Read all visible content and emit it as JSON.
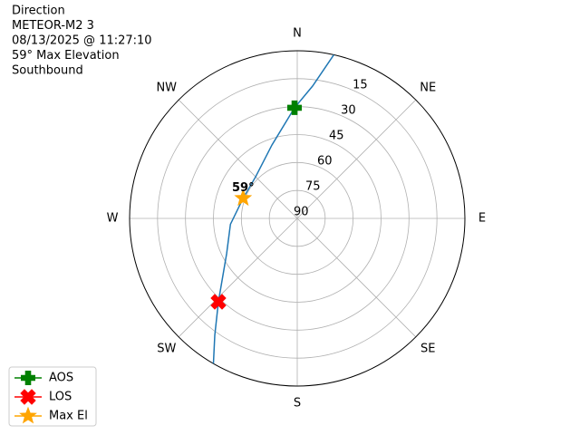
{
  "chart_data": {
    "type": "polar",
    "title_lines": [
      "Direction",
      "METEOR-M2 3",
      "08/13/2025 @ 11:27:10",
      "59° Max Elevation",
      "Southbound"
    ],
    "directions": [
      "N",
      "NE",
      "E",
      "SE",
      "S",
      "SW",
      "W",
      "NW"
    ],
    "rlim": [
      90,
      0
    ],
    "rticks": [
      90,
      75,
      60,
      45,
      30,
      15
    ],
    "grid": true,
    "legend": "lower left",
    "track": {
      "color": "#1f77b4",
      "azimuth": [
        12.6,
        6.6,
        358.6,
        341,
        315,
        290.5,
        265,
        243.4,
        223.4,
        215.2,
        210
      ],
      "elevation": [
        0,
        18.5,
        30.6,
        48.3,
        58.4,
        59,
        54,
        47.6,
        28.4,
        13.2,
        0
      ]
    },
    "series": [
      {
        "name": "AOS",
        "color": "#008000",
        "marker": "plus",
        "azimuth": [
          358.6
        ],
        "elevation": [
          30.6
        ]
      },
      {
        "name": "LOS",
        "color": "#ff0000",
        "marker": "x",
        "azimuth": [
          223.4
        ],
        "elevation": [
          28.4
        ]
      },
      {
        "name": "Max El",
        "color": "#ffa500",
        "marker": "star",
        "azimuth": [
          290.5
        ],
        "elevation": [
          59
        ],
        "value_labels": [
          "59°"
        ]
      }
    ]
  }
}
